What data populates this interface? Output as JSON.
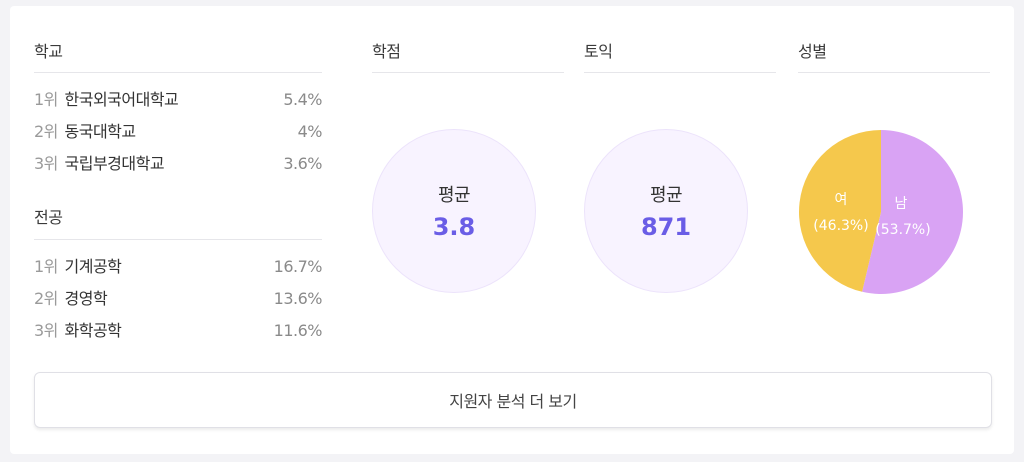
{
  "school": {
    "title": "학교",
    "items": [
      {
        "rank": "1위",
        "name": "한국외국어대학교",
        "pct": "5.4%"
      },
      {
        "rank": "2위",
        "name": "동국대학교",
        "pct": "4%"
      },
      {
        "rank": "3위",
        "name": "국립부경대학교",
        "pct": "3.6%"
      }
    ]
  },
  "major": {
    "title": "전공",
    "items": [
      {
        "rank": "1위",
        "name": "기계공학",
        "pct": "16.7%"
      },
      {
        "rank": "2위",
        "name": "경영학",
        "pct": "13.6%"
      },
      {
        "rank": "3위",
        "name": "화학공학",
        "pct": "11.6%"
      }
    ]
  },
  "gpa": {
    "title": "학점",
    "label": "평균",
    "value": "3.8"
  },
  "toeic": {
    "title": "토익",
    "label": "평균",
    "value": "871"
  },
  "gender": {
    "title": "성별",
    "slices": [
      {
        "label": "남",
        "pct_text": "(53.7%)",
        "value": 53.7,
        "color": "#d9a3f4"
      },
      {
        "label": "여",
        "pct_text": "(46.3%)",
        "value": 46.3,
        "color": "#f5c84c"
      }
    ]
  },
  "more_button": "지원자 분석 더 보기"
}
